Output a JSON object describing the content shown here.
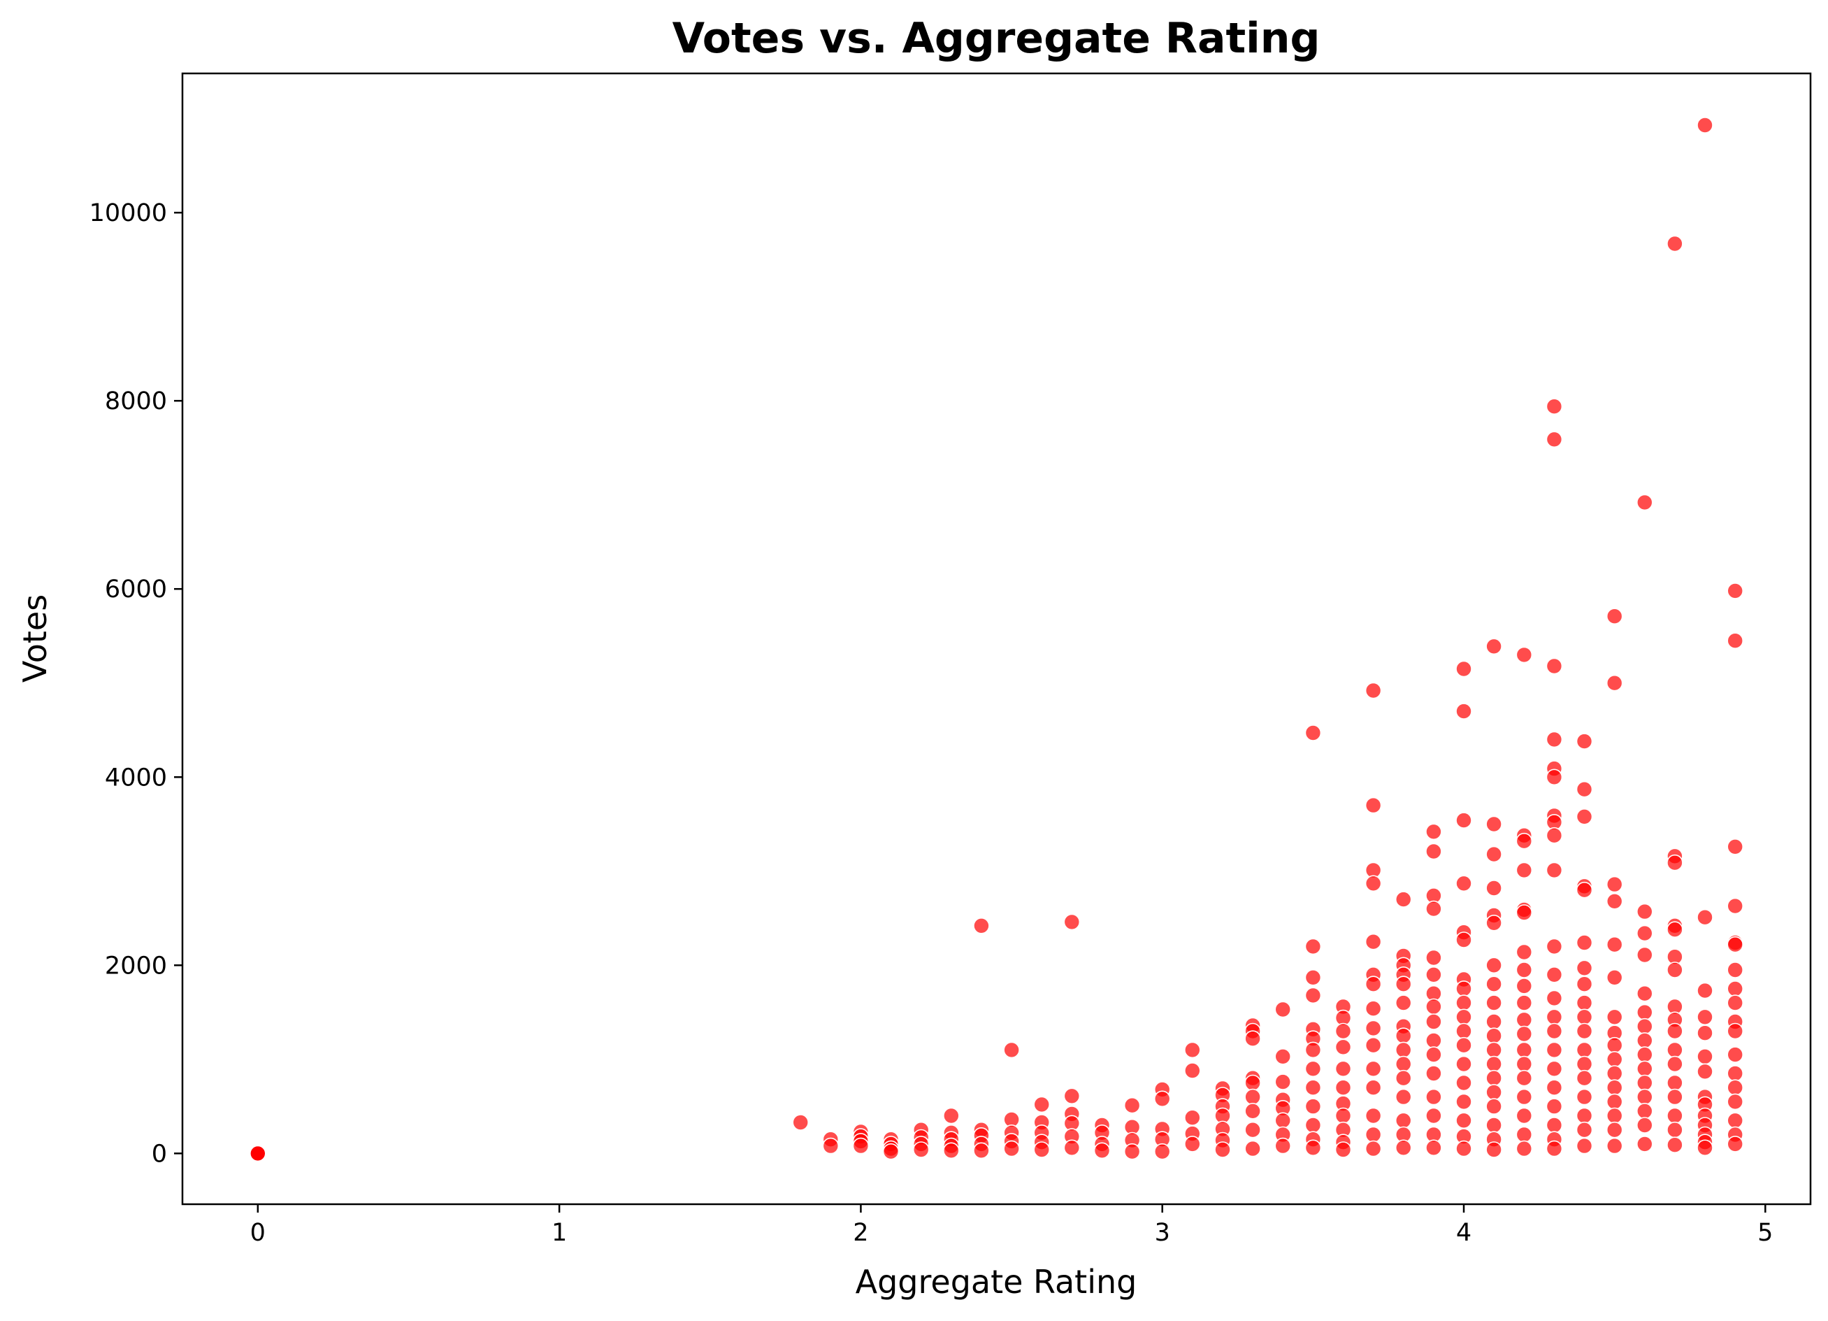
{
  "chart_data": {
    "type": "scatter",
    "title": "Votes vs. Aggregate Rating",
    "xlabel": "Aggregate Rating",
    "ylabel": "Votes",
    "xlim": [
      -0.25,
      5.15
    ],
    "ylim": [
      -540,
      11480
    ],
    "xticks": [
      0,
      1,
      2,
      3,
      4,
      5
    ],
    "yticks": [
      0,
      2000,
      4000,
      6000,
      8000,
      10000
    ],
    "grid": false,
    "legend": "none",
    "color": "#ff0000",
    "point_opacity": 0.7,
    "series": [
      {
        "x": [
          0,
          0,
          0,
          0,
          0,
          0,
          1.8,
          1.9,
          1.9,
          2.0,
          2.0,
          2.0,
          2.0,
          2.1,
          2.1,
          2.1,
          2.1,
          2.2,
          2.2,
          2.2,
          2.2,
          2.3,
          2.3,
          2.3,
          2.3,
          2.3,
          2.4,
          2.4,
          2.4,
          2.4,
          2.4,
          2.5,
          2.5,
          2.5,
          2.5,
          2.5,
          2.6,
          2.6,
          2.6,
          2.6,
          2.6,
          2.7,
          2.7,
          2.7,
          2.7,
          2.7,
          2.7,
          2.8,
          2.8,
          2.8,
          2.8,
          2.9,
          2.9,
          2.9,
          2.9,
          3.0,
          3.0,
          3.0,
          3.0,
          3.0,
          3.1,
          3.1,
          3.1,
          3.1,
          3.1,
          3.2,
          3.2,
          3.2,
          3.2,
          3.2,
          3.2,
          3.2,
          3.3,
          3.3,
          3.3,
          3.3,
          3.3,
          3.3,
          3.3,
          3.3,
          3.3,
          3.4,
          3.4,
          3.4,
          3.4,
          3.4,
          3.4,
          3.4,
          3.4,
          3.5,
          3.5,
          3.5,
          3.5,
          3.5,
          3.5,
          3.5,
          3.5,
          3.5,
          3.5,
          3.5,
          3.5,
          3.5,
          3.6,
          3.6,
          3.6,
          3.6,
          3.6,
          3.6,
          3.6,
          3.6,
          3.6,
          3.6,
          3.6,
          3.7,
          3.7,
          3.7,
          3.7,
          3.7,
          3.7,
          3.7,
          3.7,
          3.7,
          3.7,
          3.7,
          3.7,
          3.7,
          3.7,
          3.7,
          3.8,
          3.8,
          3.8,
          3.8,
          3.8,
          3.8,
          3.8,
          3.8,
          3.8,
          3.8,
          3.8,
          3.8,
          3.8,
          3.8,
          3.8,
          3.9,
          3.9,
          3.9,
          3.9,
          3.9,
          3.9,
          3.9,
          3.9,
          3.9,
          3.9,
          3.9,
          3.9,
          3.9,
          3.9,
          3.9,
          3.9,
          4.0,
          4.0,
          4.0,
          4.0,
          4.0,
          4.0,
          4.0,
          4.0,
          4.0,
          4.0,
          4.0,
          4.0,
          4.0,
          4.0,
          4.0,
          4.0,
          4.0,
          4.0,
          4.1,
          4.1,
          4.1,
          4.1,
          4.1,
          4.1,
          4.1,
          4.1,
          4.1,
          4.1,
          4.1,
          4.1,
          4.1,
          4.1,
          4.1,
          4.1,
          4.1,
          4.1,
          4.1,
          4.2,
          4.2,
          4.2,
          4.2,
          4.2,
          4.2,
          4.2,
          4.2,
          4.2,
          4.2,
          4.2,
          4.2,
          4.2,
          4.2,
          4.2,
          4.2,
          4.2,
          4.2,
          4.2,
          4.3,
          4.3,
          4.3,
          4.3,
          4.3,
          4.3,
          4.3,
          4.3,
          4.3,
          4.3,
          4.3,
          4.3,
          4.3,
          4.3,
          4.3,
          4.3,
          4.3,
          4.3,
          4.3,
          4.3,
          4.3,
          4.3,
          4.4,
          4.4,
          4.4,
          4.4,
          4.4,
          4.4,
          4.4,
          4.4,
          4.4,
          4.4,
          4.4,
          4.4,
          4.4,
          4.4,
          4.4,
          4.4,
          4.4,
          4.4,
          4.5,
          4.5,
          4.5,
          4.5,
          4.5,
          4.5,
          4.5,
          4.5,
          4.5,
          4.5,
          4.5,
          4.5,
          4.5,
          4.5,
          4.5,
          4.5,
          4.6,
          4.6,
          4.6,
          4.6,
          4.6,
          4.6,
          4.6,
          4.6,
          4.6,
          4.6,
          4.6,
          4.6,
          4.6,
          4.6,
          4.6,
          4.7,
          4.7,
          4.7,
          4.7,
          4.7,
          4.7,
          4.7,
          4.7,
          4.7,
          4.7,
          4.7,
          4.7,
          4.7,
          4.7,
          4.7,
          4.7,
          4.7,
          4.8,
          4.8,
          4.8,
          4.8,
          4.8,
          4.8,
          4.8,
          4.8,
          4.8,
          4.8,
          4.8,
          4.8,
          4.8,
          4.8,
          4.9,
          4.9,
          4.9,
          4.9,
          4.9,
          4.9,
          4.9,
          4.9,
          4.9,
          4.9,
          4.9,
          4.9,
          4.9,
          4.9,
          4.9,
          4.9,
          4.9,
          4.9
        ],
        "y": [
          0,
          0,
          0,
          0,
          0,
          0,
          330,
          150,
          80,
          230,
          180,
          130,
          80,
          150,
          100,
          50,
          20,
          250,
          170,
          100,
          40,
          400,
          220,
          150,
          80,
          30,
          2420,
          250,
          190,
          100,
          30,
          1100,
          360,
          220,
          130,
          50,
          520,
          330,
          220,
          120,
          40,
          2460,
          610,
          420,
          320,
          180,
          60,
          300,
          220,
          100,
          30,
          510,
          280,
          140,
          20,
          680,
          580,
          260,
          150,
          20,
          1100,
          880,
          380,
          210,
          100,
          690,
          620,
          500,
          400,
          260,
          140,
          40,
          1360,
          1300,
          1220,
          800,
          750,
          600,
          450,
          250,
          50,
          1530,
          1030,
          760,
          570,
          480,
          350,
          200,
          80,
          4470,
          2200,
          1870,
          1680,
          1320,
          1220,
          1100,
          900,
          700,
          500,
          300,
          150,
          60,
          1560,
          1440,
          1300,
          1130,
          900,
          700,
          530,
          400,
          250,
          120,
          40,
          4920,
          3700,
          3010,
          2870,
          2250,
          1900,
          1800,
          1540,
          1330,
          1150,
          900,
          700,
          400,
          200,
          50,
          2700,
          2100,
          2000,
          1900,
          1800,
          1600,
          1350,
          1250,
          1100,
          950,
          800,
          600,
          350,
          200,
          60,
          3420,
          3210,
          2740,
          2600,
          2080,
          1900,
          1700,
          1560,
          1400,
          1200,
          1050,
          850,
          600,
          400,
          200,
          60,
          5150,
          4700,
          3540,
          2870,
          2350,
          2270,
          1850,
          1750,
          1600,
          1450,
          1300,
          1150,
          950,
          750,
          550,
          350,
          180,
          50,
          5390,
          3500,
          3180,
          2820,
          2530,
          2450,
          2000,
          1800,
          1600,
          1400,
          1250,
          1100,
          950,
          800,
          650,
          500,
          300,
          150,
          40,
          5300,
          3380,
          3320,
          3010,
          2590,
          2560,
          2140,
          1950,
          1780,
          1600,
          1420,
          1270,
          1100,
          950,
          800,
          600,
          400,
          200,
          50,
          7940,
          7590,
          5180,
          4400,
          4090,
          4000,
          3590,
          3520,
          3380,
          3010,
          2200,
          1900,
          1650,
          1450,
          1300,
          1100,
          900,
          700,
          500,
          300,
          150,
          50,
          4380,
          3870,
          3580,
          2840,
          2800,
          2240,
          1970,
          1800,
          1600,
          1450,
          1300,
          1100,
          950,
          800,
          600,
          400,
          250,
          80,
          5710,
          5000,
          2860,
          2680,
          2220,
          1870,
          1450,
          1280,
          1150,
          1000,
          850,
          700,
          550,
          400,
          250,
          80,
          6920,
          2570,
          2340,
          2110,
          1700,
          1500,
          1350,
          1200,
          1050,
          900,
          750,
          600,
          450,
          300,
          100,
          9670,
          3160,
          3090,
          2420,
          2380,
          2090,
          1950,
          1560,
          1420,
          1300,
          1100,
          950,
          750,
          600,
          400,
          250,
          90,
          10930,
          2510,
          1730,
          1450,
          1280,
          1030,
          870,
          600,
          520,
          400,
          300,
          200,
          120,
          60,
          5980,
          5450,
          3260,
          2630,
          2240,
          2220,
          1950,
          1750,
          1600,
          1400,
          1300,
          1050,
          850,
          700,
          550,
          350,
          200,
          100
        ]
      }
    ]
  }
}
